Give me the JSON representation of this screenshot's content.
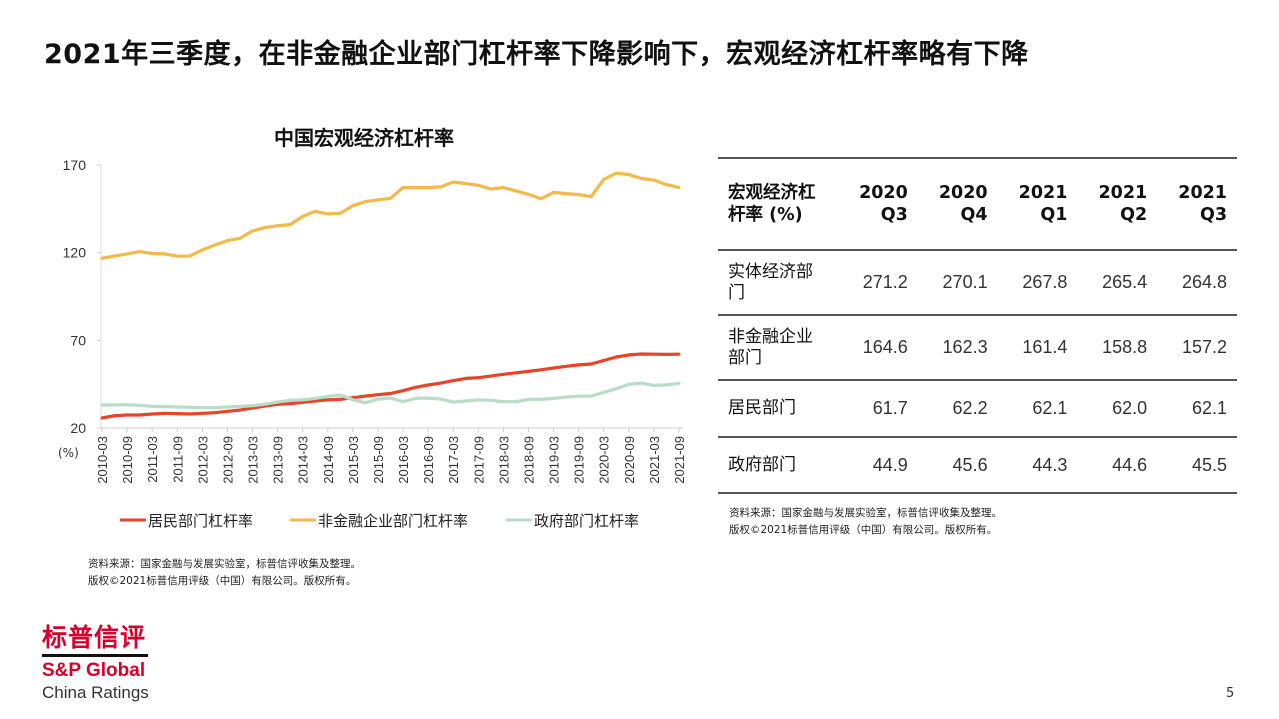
{
  "title": "2021年三季度，在非金融企业部门杠杆率下降影响下，宏观经济杠杆率略有下降",
  "chart_data": {
    "type": "line",
    "title": "中国宏观经济杠杆率",
    "ylabel": "(%)",
    "ylim": [
      20,
      170
    ],
    "yticks": [
      20,
      70,
      120,
      170
    ],
    "grid": false,
    "legend_position": "bottom",
    "x": [
      "2010-03",
      "2010-06",
      "2010-09",
      "2010-12",
      "2011-03",
      "2011-06",
      "2011-09",
      "2011-12",
      "2012-03",
      "2012-06",
      "2012-09",
      "2012-12",
      "2013-03",
      "2013-06",
      "2013-09",
      "2013-12",
      "2014-03",
      "2014-06",
      "2014-09",
      "2014-12",
      "2015-03",
      "2015-06",
      "2015-09",
      "2015-12",
      "2016-03",
      "2016-06",
      "2016-09",
      "2016-12",
      "2017-03",
      "2017-06",
      "2017-09",
      "2017-12",
      "2018-03",
      "2018-06",
      "2018-09",
      "2018-12",
      "2019-03",
      "2019-06",
      "2019-09",
      "2019-12",
      "2020-03",
      "2020-06",
      "2020-09",
      "2020-12",
      "2021-03",
      "2021-06",
      "2021-09"
    ],
    "xtick_labels": [
      "2010-03",
      "2010-09",
      "2011-03",
      "2011-09",
      "2012-03",
      "2012-09",
      "2013-03",
      "2013-09",
      "2014-03",
      "2014-09",
      "2015-03",
      "2015-09",
      "2016-03",
      "2016-09",
      "2017-03",
      "2017-09",
      "2018-03",
      "2018-09",
      "2019-03",
      "2019-09",
      "2020-03",
      "2020-09",
      "2021-03",
      "2021-09"
    ],
    "series": [
      {
        "name": "居民部门杠杆率",
        "color": "#e8442a",
        "values": [
          25.7,
          27.0,
          27.4,
          27.4,
          28.0,
          28.4,
          28.2,
          28.0,
          28.4,
          28.7,
          29.5,
          30.2,
          31.4,
          32.5,
          33.5,
          33.9,
          34.6,
          35.4,
          36.0,
          36.3,
          37.3,
          38.2,
          39.0,
          39.7,
          41.3,
          43.2,
          44.5,
          45.6,
          47.0,
          48.3,
          48.7,
          49.6,
          50.6,
          51.5,
          52.3,
          53.2,
          54.2,
          55.2,
          56.0,
          56.5,
          58.5,
          60.5,
          61.7,
          62.2,
          62.1,
          62.0,
          62.1
        ]
      },
      {
        "name": "非金融企业部门杠杆率",
        "color": "#f3b94a",
        "values": [
          116.8,
          118.1,
          119.3,
          120.6,
          119.5,
          119.3,
          118.0,
          118.1,
          121.6,
          124.4,
          126.9,
          128.2,
          132.4,
          134.3,
          135.4,
          136.0,
          140.6,
          143.6,
          142.1,
          142.5,
          146.8,
          149.1,
          150.1,
          151.0,
          157.1,
          157.1,
          157.1,
          157.5,
          160.3,
          159.4,
          158.4,
          156.3,
          157.1,
          155.2,
          153.3,
          150.8,
          154.4,
          153.7,
          153.1,
          152.0,
          161.8,
          165.3,
          164.6,
          162.3,
          161.4,
          158.8,
          157.2
        ]
      },
      {
        "name": "政府部门杠杆率",
        "color": "#b9dcc6",
        "values": [
          33.1,
          33.1,
          33.3,
          32.9,
          32.3,
          32.2,
          32.0,
          31.8,
          31.6,
          31.6,
          32.0,
          32.3,
          32.7,
          33.6,
          34.8,
          35.8,
          36.1,
          36.9,
          38.0,
          38.8,
          36.1,
          34.4,
          36.5,
          37.1,
          35.0,
          36.9,
          37.1,
          36.5,
          34.8,
          35.4,
          36.0,
          35.8,
          35.0,
          35.0,
          36.3,
          36.3,
          36.9,
          37.6,
          38.2,
          38.2,
          40.3,
          42.4,
          44.9,
          45.6,
          44.3,
          44.6,
          45.5
        ]
      }
    ]
  },
  "chart_note": [
    "资料来源：国家金融与发展实验室，标普信评收集及整理。",
    "版权©2021标普信用评级（中国）有限公司。版权所有。"
  ],
  "table": {
    "header": [
      "宏观经济杠杆率 (%)",
      "2020 Q3",
      "2020 Q4",
      "2021 Q1",
      "2021 Q2",
      "2021 Q3"
    ],
    "rows": [
      {
        "label": "实体经济部门",
        "values": [
          "271.2",
          "270.1",
          "267.8",
          "265.4",
          "264.8"
        ]
      },
      {
        "label": "非金融企业部门",
        "values": [
          "164.6",
          "162.3",
          "161.4",
          "158.8",
          "157.2"
        ]
      },
      {
        "label": "居民部门",
        "values": [
          "61.7",
          "62.2",
          "62.1",
          "62.0",
          "62.1"
        ]
      },
      {
        "label": "政府部门",
        "values": [
          "44.9",
          "45.6",
          "44.3",
          "44.6",
          "45.5"
        ]
      }
    ]
  },
  "table_note": [
    "资料来源：国家金融与发展实验室，标普信评收集及整理。",
    "版权©2021标普信用评级（中国）有限公司。版权所有。"
  ],
  "logo": {
    "cn": "标普信评",
    "en": "S&P Global",
    "sub": "China Ratings",
    "color": "#d6002a"
  },
  "page_number": "5"
}
